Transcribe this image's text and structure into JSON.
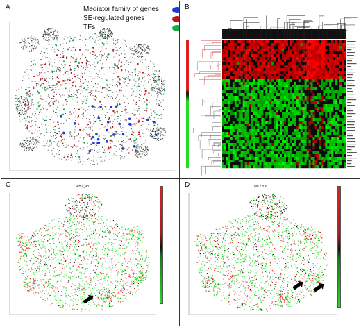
{
  "panels": {
    "a": {
      "letter": "A"
    },
    "b": {
      "letter": "B"
    },
    "c": {
      "letter": "C",
      "title": "ABT_98"
    },
    "d": {
      "letter": "D",
      "title": "MK2206"
    }
  },
  "legend": {
    "items": [
      {
        "label": "Mediator family of genes",
        "color": "#1f3bd6"
      },
      {
        "label": "SE-regulated genes",
        "color": "#c0161b"
      },
      {
        "label": "TFs",
        "color": "#1faa4a"
      }
    ]
  },
  "colors": {
    "background_points": "#333333",
    "high": "#e02020",
    "mid": "#111111",
    "low": "#22dd22",
    "tree_red": "#d05050"
  },
  "colorbar_gradient": "linear-gradient(to bottom, #e02020 0%, #b01818 40%, #111111 52%, #1a7a1a 60%, #22dd22 100%)",
  "heatmap_sidebar_gradient": "linear-gradient(to bottom, #e02020 0%, #e02020 38%, #111 42%, #22dd22 48%, #22dd22 100%)",
  "arrows": {
    "c": "➡",
    "d": "➡"
  }
}
